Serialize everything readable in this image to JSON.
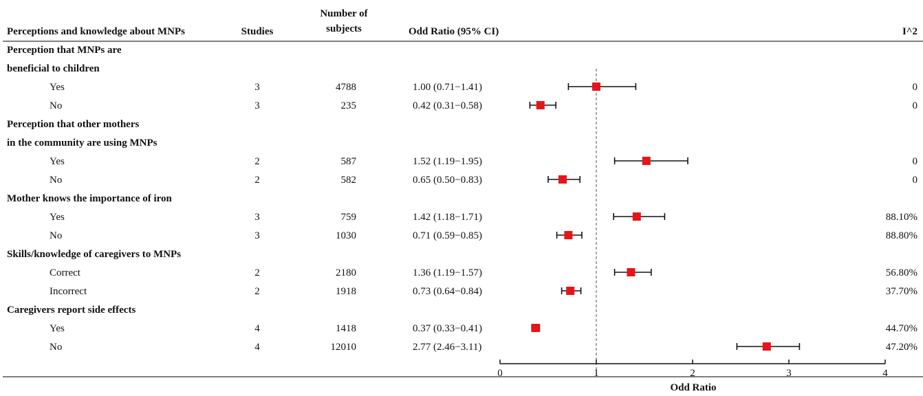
{
  "table": {
    "headers": {
      "category": "Perceptions and knowledge about MNPs",
      "studies": "Studies",
      "subjects_line1": "Number of",
      "subjects_line2": "subjects",
      "or": "Odd Ratio (95% CI)",
      "i2": "I^2"
    },
    "groups": [
      {
        "title_lines": [
          "Perception that MNPs are",
          "beneficial to children"
        ],
        "rows": [
          {
            "label": "Yes",
            "studies": "3",
            "subjects": "4788",
            "or_text": "1.00 (0.71−1.41)",
            "i2": "0"
          },
          {
            "label": "No",
            "studies": "3",
            "subjects": "235",
            "or_text": "0.42 (0.31−0.58)",
            "i2": "0"
          }
        ]
      },
      {
        "title_lines": [
          "Perception that other mothers",
          "in the community are using MNPs"
        ],
        "rows": [
          {
            "label": "Yes",
            "studies": "2",
            "subjects": "587",
            "or_text": "1.52 (1.19−1.95)",
            "i2": "0"
          },
          {
            "label": "No",
            "studies": "2",
            "subjects": "582",
            "or_text": "0.65 (0.50−0.83)",
            "i2": "0"
          }
        ]
      },
      {
        "title_lines": [
          "Mother knows the importance of iron"
        ],
        "rows": [
          {
            "label": "Yes",
            "studies": "3",
            "subjects": "759",
            "or_text": "1.42 (1.18−1.71)",
            "i2": "88.10%"
          },
          {
            "label": "No",
            "studies": "3",
            "subjects": "1030",
            "or_text": "0.71 (0.59−0.85)",
            "i2": "88.80%"
          }
        ]
      },
      {
        "title_lines": [
          "Skills/knowledge of caregivers to MNPs"
        ],
        "rows": [
          {
            "label": "Correct",
            "studies": "2",
            "subjects": "2180",
            "or_text": "1.36 (1.19−1.57)",
            "i2": "56.80%"
          },
          {
            "label": "Incorrect",
            "studies": "2",
            "subjects": "1918",
            "or_text": "0.73 (0.64−0.84)",
            "i2": "37.70%"
          }
        ]
      },
      {
        "title_lines": [
          "Caregivers report side effects"
        ],
        "rows": [
          {
            "label": "Yes",
            "studies": "4",
            "subjects": "1418",
            "or_text": "0.37 (0.33−0.41)",
            "i2": "44.70%"
          },
          {
            "label": "No",
            "studies": "4",
            "subjects": "12010",
            "or_text": "2.77 (2.46−3.11)",
            "i2": "47.20%"
          }
        ]
      }
    ]
  },
  "chart_data": {
    "type": "forest",
    "xlabel": "Odd Ratio",
    "xlim": [
      0,
      4
    ],
    "xticks": [
      "0",
      "1",
      "2",
      "3",
      "4"
    ],
    "reference_line": 1,
    "marker_color": "#e8141b",
    "points": [
      {
        "group": "Perception that MNPs are beneficial to children",
        "label": "Yes",
        "or": 1.0,
        "lo": 0.71,
        "hi": 1.41
      },
      {
        "group": "Perception that MNPs are beneficial to children",
        "label": "No",
        "or": 0.42,
        "lo": 0.31,
        "hi": 0.58
      },
      {
        "group": "Perception that other mothers in the community are using MNPs",
        "label": "Yes",
        "or": 1.52,
        "lo": 1.19,
        "hi": 1.95
      },
      {
        "group": "Perception that other mothers in the community are using MNPs",
        "label": "No",
        "or": 0.65,
        "lo": 0.5,
        "hi": 0.83
      },
      {
        "group": "Mother knows the importance of iron",
        "label": "Yes",
        "or": 1.42,
        "lo": 1.18,
        "hi": 1.71
      },
      {
        "group": "Mother knows the importance of iron",
        "label": "No",
        "or": 0.71,
        "lo": 0.59,
        "hi": 0.85
      },
      {
        "group": "Skills/knowledge of caregivers to MNPs",
        "label": "Correct",
        "or": 1.36,
        "lo": 1.19,
        "hi": 1.57
      },
      {
        "group": "Skills/knowledge of caregivers to MNPs",
        "label": "Incorrect",
        "or": 0.73,
        "lo": 0.64,
        "hi": 0.84
      },
      {
        "group": "Caregivers report side effects",
        "label": "Yes",
        "or": 0.37,
        "lo": 0.33,
        "hi": 0.41
      },
      {
        "group": "Caregivers report side effects",
        "label": "No",
        "or": 2.77,
        "lo": 2.46,
        "hi": 3.11
      }
    ]
  }
}
